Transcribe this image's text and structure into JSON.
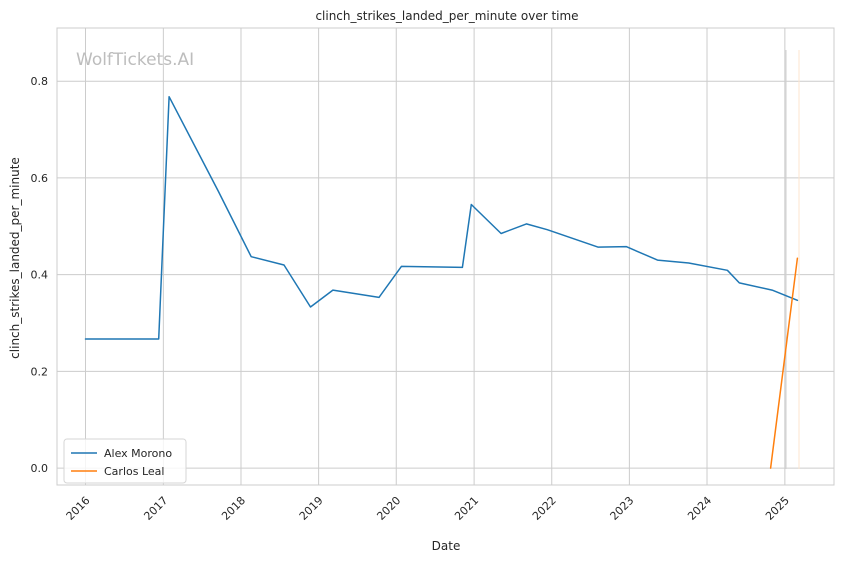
{
  "chart_data": {
    "type": "line",
    "title": "clinch_strikes_landed_per_minute over time",
    "xlabel": "Date",
    "ylabel": "clinch_strikes_landed_per_minute",
    "watermark": "WolfTickets.AI",
    "x_ticks": [
      "2016",
      "2017",
      "2018",
      "2019",
      "2020",
      "2021",
      "2022",
      "2023",
      "2024",
      "2025"
    ],
    "y_ticks": [
      "0.0",
      "0.2",
      "0.4",
      "0.6",
      "0.8"
    ],
    "xlim": [
      "2015-08-20",
      "2025-08-20"
    ],
    "ylim": [
      -0.035,
      0.91
    ],
    "grid": true,
    "legend_position": "lower-left",
    "series": [
      {
        "name": "Alex Morono",
        "color": "#1f77b4",
        "points": [
          {
            "x": "2016-01-01",
            "y": 0.267
          },
          {
            "x": "2016-12-10",
            "y": 0.267
          },
          {
            "x": "2017-01-28",
            "y": 0.768
          },
          {
            "x": "2017-09-16",
            "y": 0.573
          },
          {
            "x": "2018-02-18",
            "y": 0.437
          },
          {
            "x": "2018-07-22",
            "y": 0.42
          },
          {
            "x": "2018-11-24",
            "y": 0.333
          },
          {
            "x": "2019-03-09",
            "y": 0.368
          },
          {
            "x": "2019-10-12",
            "y": 0.353
          },
          {
            "x": "2020-01-25",
            "y": 0.417
          },
          {
            "x": "2020-11-07",
            "y": 0.415
          },
          {
            "x": "2020-12-19",
            "y": 0.545
          },
          {
            "x": "2021-05-08",
            "y": 0.485
          },
          {
            "x": "2021-09-04",
            "y": 0.505
          },
          {
            "x": "2021-12-11",
            "y": 0.493
          },
          {
            "x": "2022-08-06",
            "y": 0.457
          },
          {
            "x": "2022-12-17",
            "y": 0.458
          },
          {
            "x": "2023-05-13",
            "y": 0.43
          },
          {
            "x": "2023-10-07",
            "y": 0.424
          },
          {
            "x": "2024-04-06",
            "y": 0.409
          },
          {
            "x": "2024-06-01",
            "y": 0.383
          },
          {
            "x": "2024-11-02",
            "y": 0.368
          },
          {
            "x": "2025-03-01",
            "y": 0.347
          }
        ]
      },
      {
        "name": "Carlos Leal",
        "color": "#ff7f0e",
        "points": [
          {
            "x": "2024-10-26",
            "y": 0.0
          },
          {
            "x": "2025-03-01",
            "y": 0.434
          }
        ]
      }
    ]
  }
}
